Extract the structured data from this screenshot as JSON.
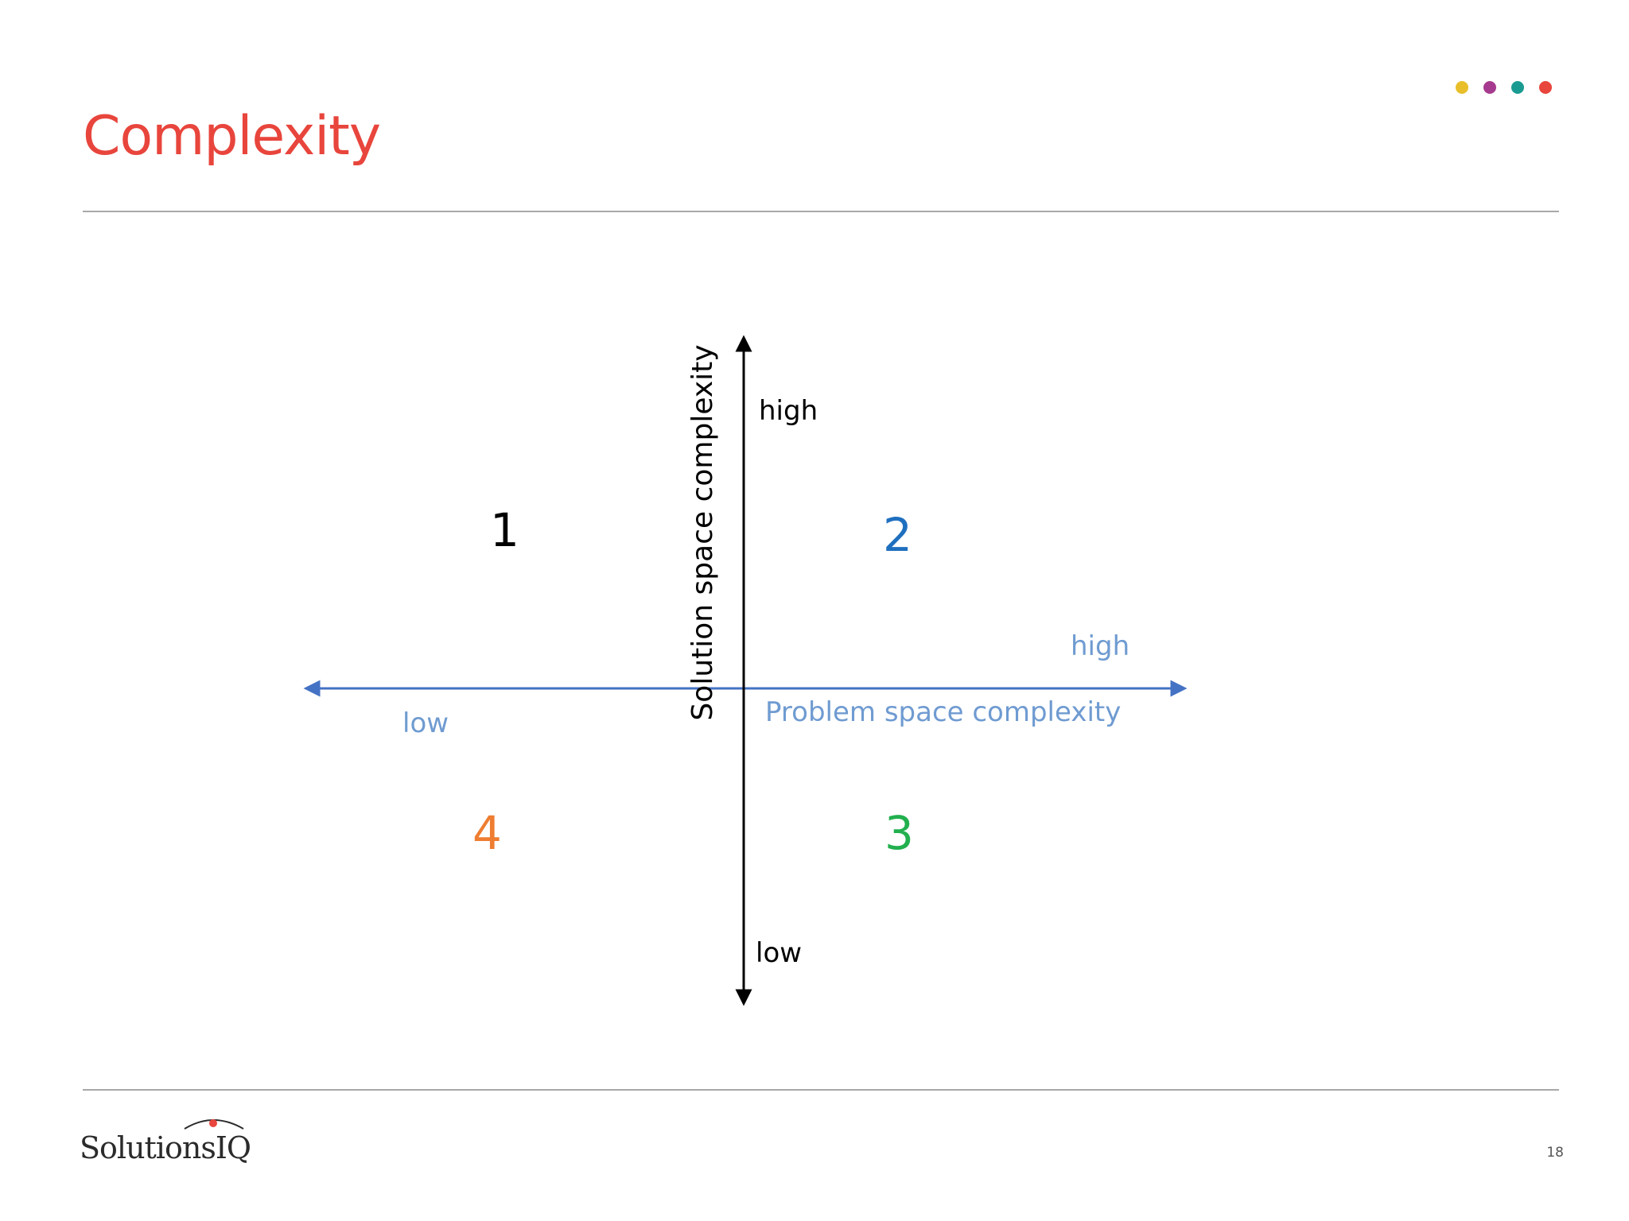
{
  "slide": {
    "title": "Complexity",
    "page_number": "18",
    "accent_dots": [
      "#e8bf2a",
      "#a63a8e",
      "#1a9b91",
      "#e8453c"
    ],
    "title_color": "#e8453c"
  },
  "diagram": {
    "vertical_axis": {
      "label": "Solution space complexity",
      "high_label": "high",
      "low_label": "low",
      "color": "#000000"
    },
    "horizontal_axis": {
      "label": "Problem space complexity",
      "high_label": "high",
      "low_label": "low",
      "color": "#4472c4",
      "label_color": "#6f9bd1"
    },
    "quadrants": [
      {
        "number": "1",
        "color": "#000000"
      },
      {
        "number": "2",
        "color": "#1f6fbf"
      },
      {
        "number": "3",
        "color": "#22b04e"
      },
      {
        "number": "4",
        "color": "#ee7d31"
      }
    ]
  },
  "footer": {
    "logo_text": "SolutionsIQ",
    "logo_mark": "."
  }
}
